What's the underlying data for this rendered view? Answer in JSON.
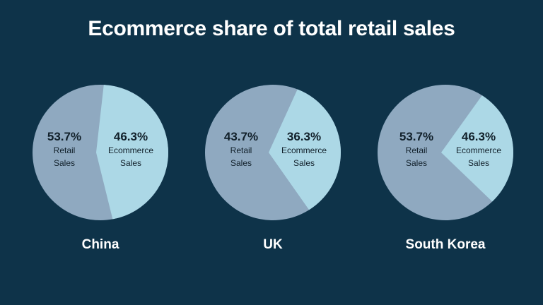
{
  "colors": {
    "background": "#0e3349",
    "retail": "#8fa9c0",
    "ecommerce": "#acd8e6",
    "text_dark": "#11202a",
    "title": "#ffffff"
  },
  "title": "Ecommerce share of total retail sales",
  "chart_data": [
    {
      "type": "pie",
      "title": "China",
      "slices": [
        {
          "label": "Retail Sales",
          "value": 53.7,
          "value_label": "53.7%",
          "name_line1": "Retail",
          "name_line2": "Sales"
        },
        {
          "label": "Ecommerce Sales",
          "value": 46.3,
          "value_label": "46.3%",
          "name_line1": "Ecommerce",
          "name_line2": "Sales"
        }
      ]
    },
    {
      "type": "pie",
      "title": "UK",
      "slices": [
        {
          "label": "Retail Sales",
          "value": 43.7,
          "value_label": "43.7%",
          "name_line1": "Retail",
          "name_line2": "Sales"
        },
        {
          "label": "Ecommerce Sales",
          "value": 36.3,
          "value_label": "36.3%",
          "name_line1": "Ecommerce",
          "name_line2": "Sales"
        }
      ]
    },
    {
      "type": "pie",
      "title": "South Korea",
      "slices": [
        {
          "label": "Retail Sales",
          "value": 53.7,
          "value_label": "53.7%",
          "name_line1": "Retail",
          "name_line2": "Sales"
        },
        {
          "label": "Ecommerce Sales",
          "value": 46.3,
          "value_label": "46.3%",
          "name_line1": "Ecommerce",
          "name_line2": "Sales"
        }
      ]
    }
  ]
}
